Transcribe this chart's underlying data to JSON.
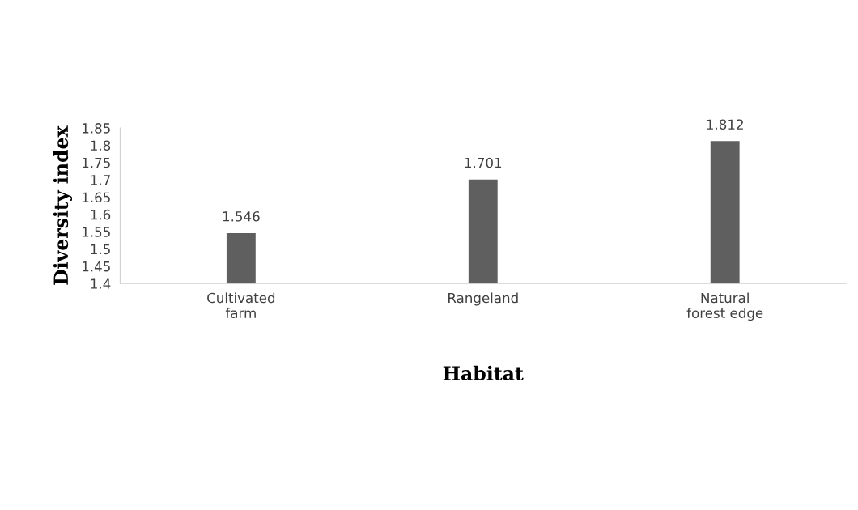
{
  "chart_data": {
    "type": "bar",
    "xlabel": "Habitat",
    "ylabel": "Diversity index",
    "categories": [
      "Cultivated\nfarm",
      "Rangeland",
      "Natural\nforest edge"
    ],
    "values": [
      1.546,
      1.701,
      1.812
    ],
    "color": "#5f5f5f",
    "ylim": [
      1.4,
      1.85
    ],
    "yticks": [
      1.4,
      1.45,
      1.5,
      1.55,
      1.6,
      1.65,
      1.7,
      1.75,
      1.8,
      1.85
    ],
    "data_labels": true,
    "grid": false,
    "legend": false
  }
}
